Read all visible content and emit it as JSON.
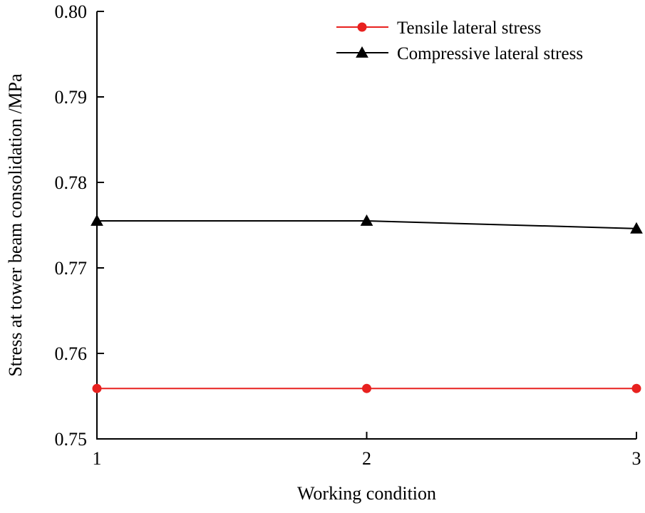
{
  "chart_data": {
    "type": "line",
    "title": "",
    "xlabel": "Working condition",
    "ylabel": "Stress at tower beam consolidation /MPa",
    "x": [
      1,
      2,
      3
    ],
    "x_tick_labels": [
      "1",
      "2",
      "3"
    ],
    "xlim": [
      1,
      3
    ],
    "ylim": [
      0.75,
      0.8
    ],
    "y_ticks": [
      0.75,
      0.76,
      0.77,
      0.78,
      0.79,
      0.8
    ],
    "y_tick_labels": [
      "0.75",
      "0.76",
      "0.77",
      "0.78",
      "0.79",
      "0.80"
    ],
    "grid": false,
    "legend_position": "top-right",
    "series": [
      {
        "name": "Tensile lateral stress",
        "values": [
          0.7559,
          0.7559,
          0.7559
        ],
        "color": "#e8211f",
        "marker": "circle"
      },
      {
        "name": "Compressive lateral stress",
        "values": [
          0.7755,
          0.7755,
          0.7746
        ],
        "color": "#000000",
        "marker": "triangle"
      }
    ]
  }
}
